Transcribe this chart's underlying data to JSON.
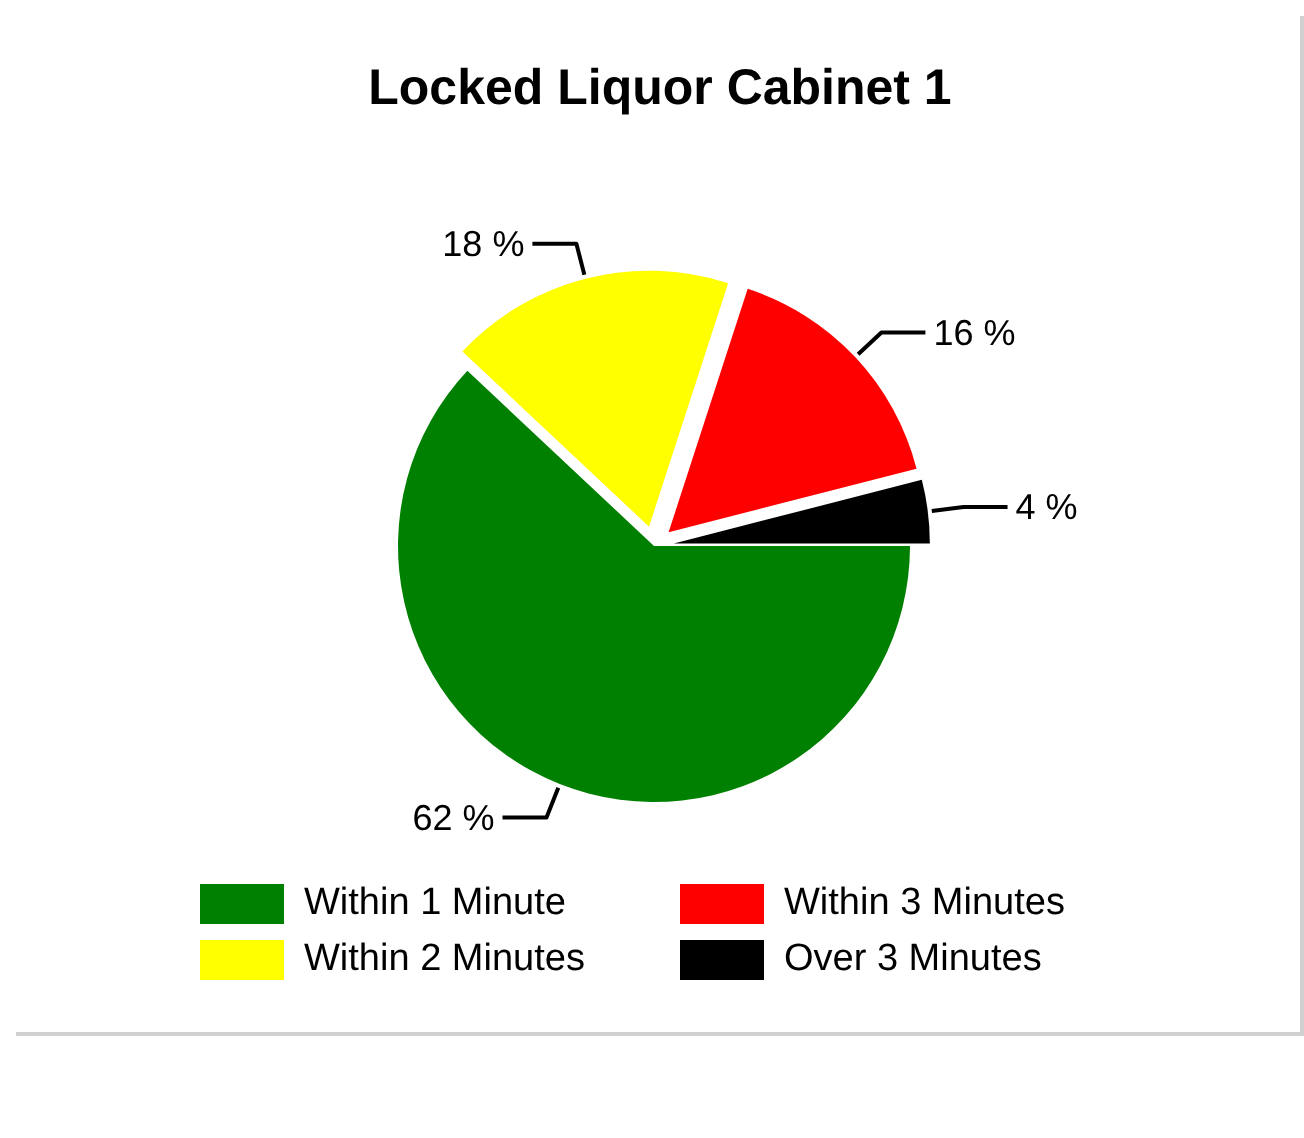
{
  "chart_data": {
    "type": "pie",
    "title": "Locked Liquor Cabinet 1",
    "categories": [
      "Within 1 Minute",
      "Within 2 Minutes",
      "Within 3 Minutes",
      "Over 3 Minutes"
    ],
    "values": [
      62,
      18,
      16,
      4
    ],
    "colors": [
      "#008000",
      "#ffff00",
      "#ff0000",
      "#000000"
    ],
    "value_labels": [
      "62 %",
      "18 %",
      "16 %",
      "4 %"
    ],
    "legend": "bottom"
  }
}
